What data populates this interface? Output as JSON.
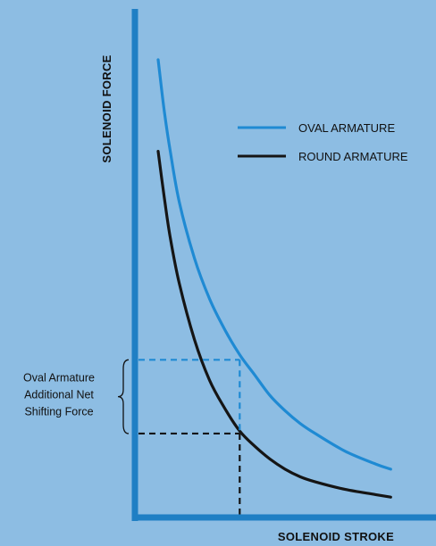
{
  "colors": {
    "background": "#8dbde3",
    "axis": "#1f7fc4",
    "oval": "#1f8ad3",
    "round": "#151515"
  },
  "chart_data": {
    "type": "line",
    "title": "",
    "xlabel": "SOLENOID STROKE",
    "ylabel": "SOLENOID FORCE",
    "ticks": "none",
    "grid": false,
    "legend_position": "top-right",
    "xlim": [
      0,
      100
    ],
    "ylim": [
      0,
      100
    ],
    "series": [
      {
        "name": "OVAL ARMATURE",
        "color": "#1f8ad3",
        "x": [
          8,
          10,
          12,
          15,
          20,
          25,
          30,
          35,
          40,
          45,
          50,
          55,
          60,
          70,
          80,
          85
        ],
        "y": [
          90,
          80,
          72,
          62,
          51,
          43,
          37,
          32,
          28,
          24,
          21,
          18.5,
          16.5,
          13,
          10.5,
          9.5
        ]
      },
      {
        "name": "ROUND ARMATURE",
        "color": "#151515",
        "x": [
          8,
          10,
          12,
          15,
          20,
          25,
          30,
          35,
          40,
          45,
          50,
          55,
          60,
          70,
          80,
          85
        ],
        "y": [
          72,
          63,
          55,
          46,
          35,
          27,
          21.5,
          17,
          14,
          11.5,
          9.5,
          8,
          7,
          5.5,
          4.5,
          4
        ]
      }
    ],
    "reference": {
      "stroke": 35,
      "oval_force": 31,
      "round_force": 16.5
    },
    "annotation": {
      "lines": [
        "Oval Armature",
        "Additional Net",
        "Shifting Force"
      ]
    }
  }
}
